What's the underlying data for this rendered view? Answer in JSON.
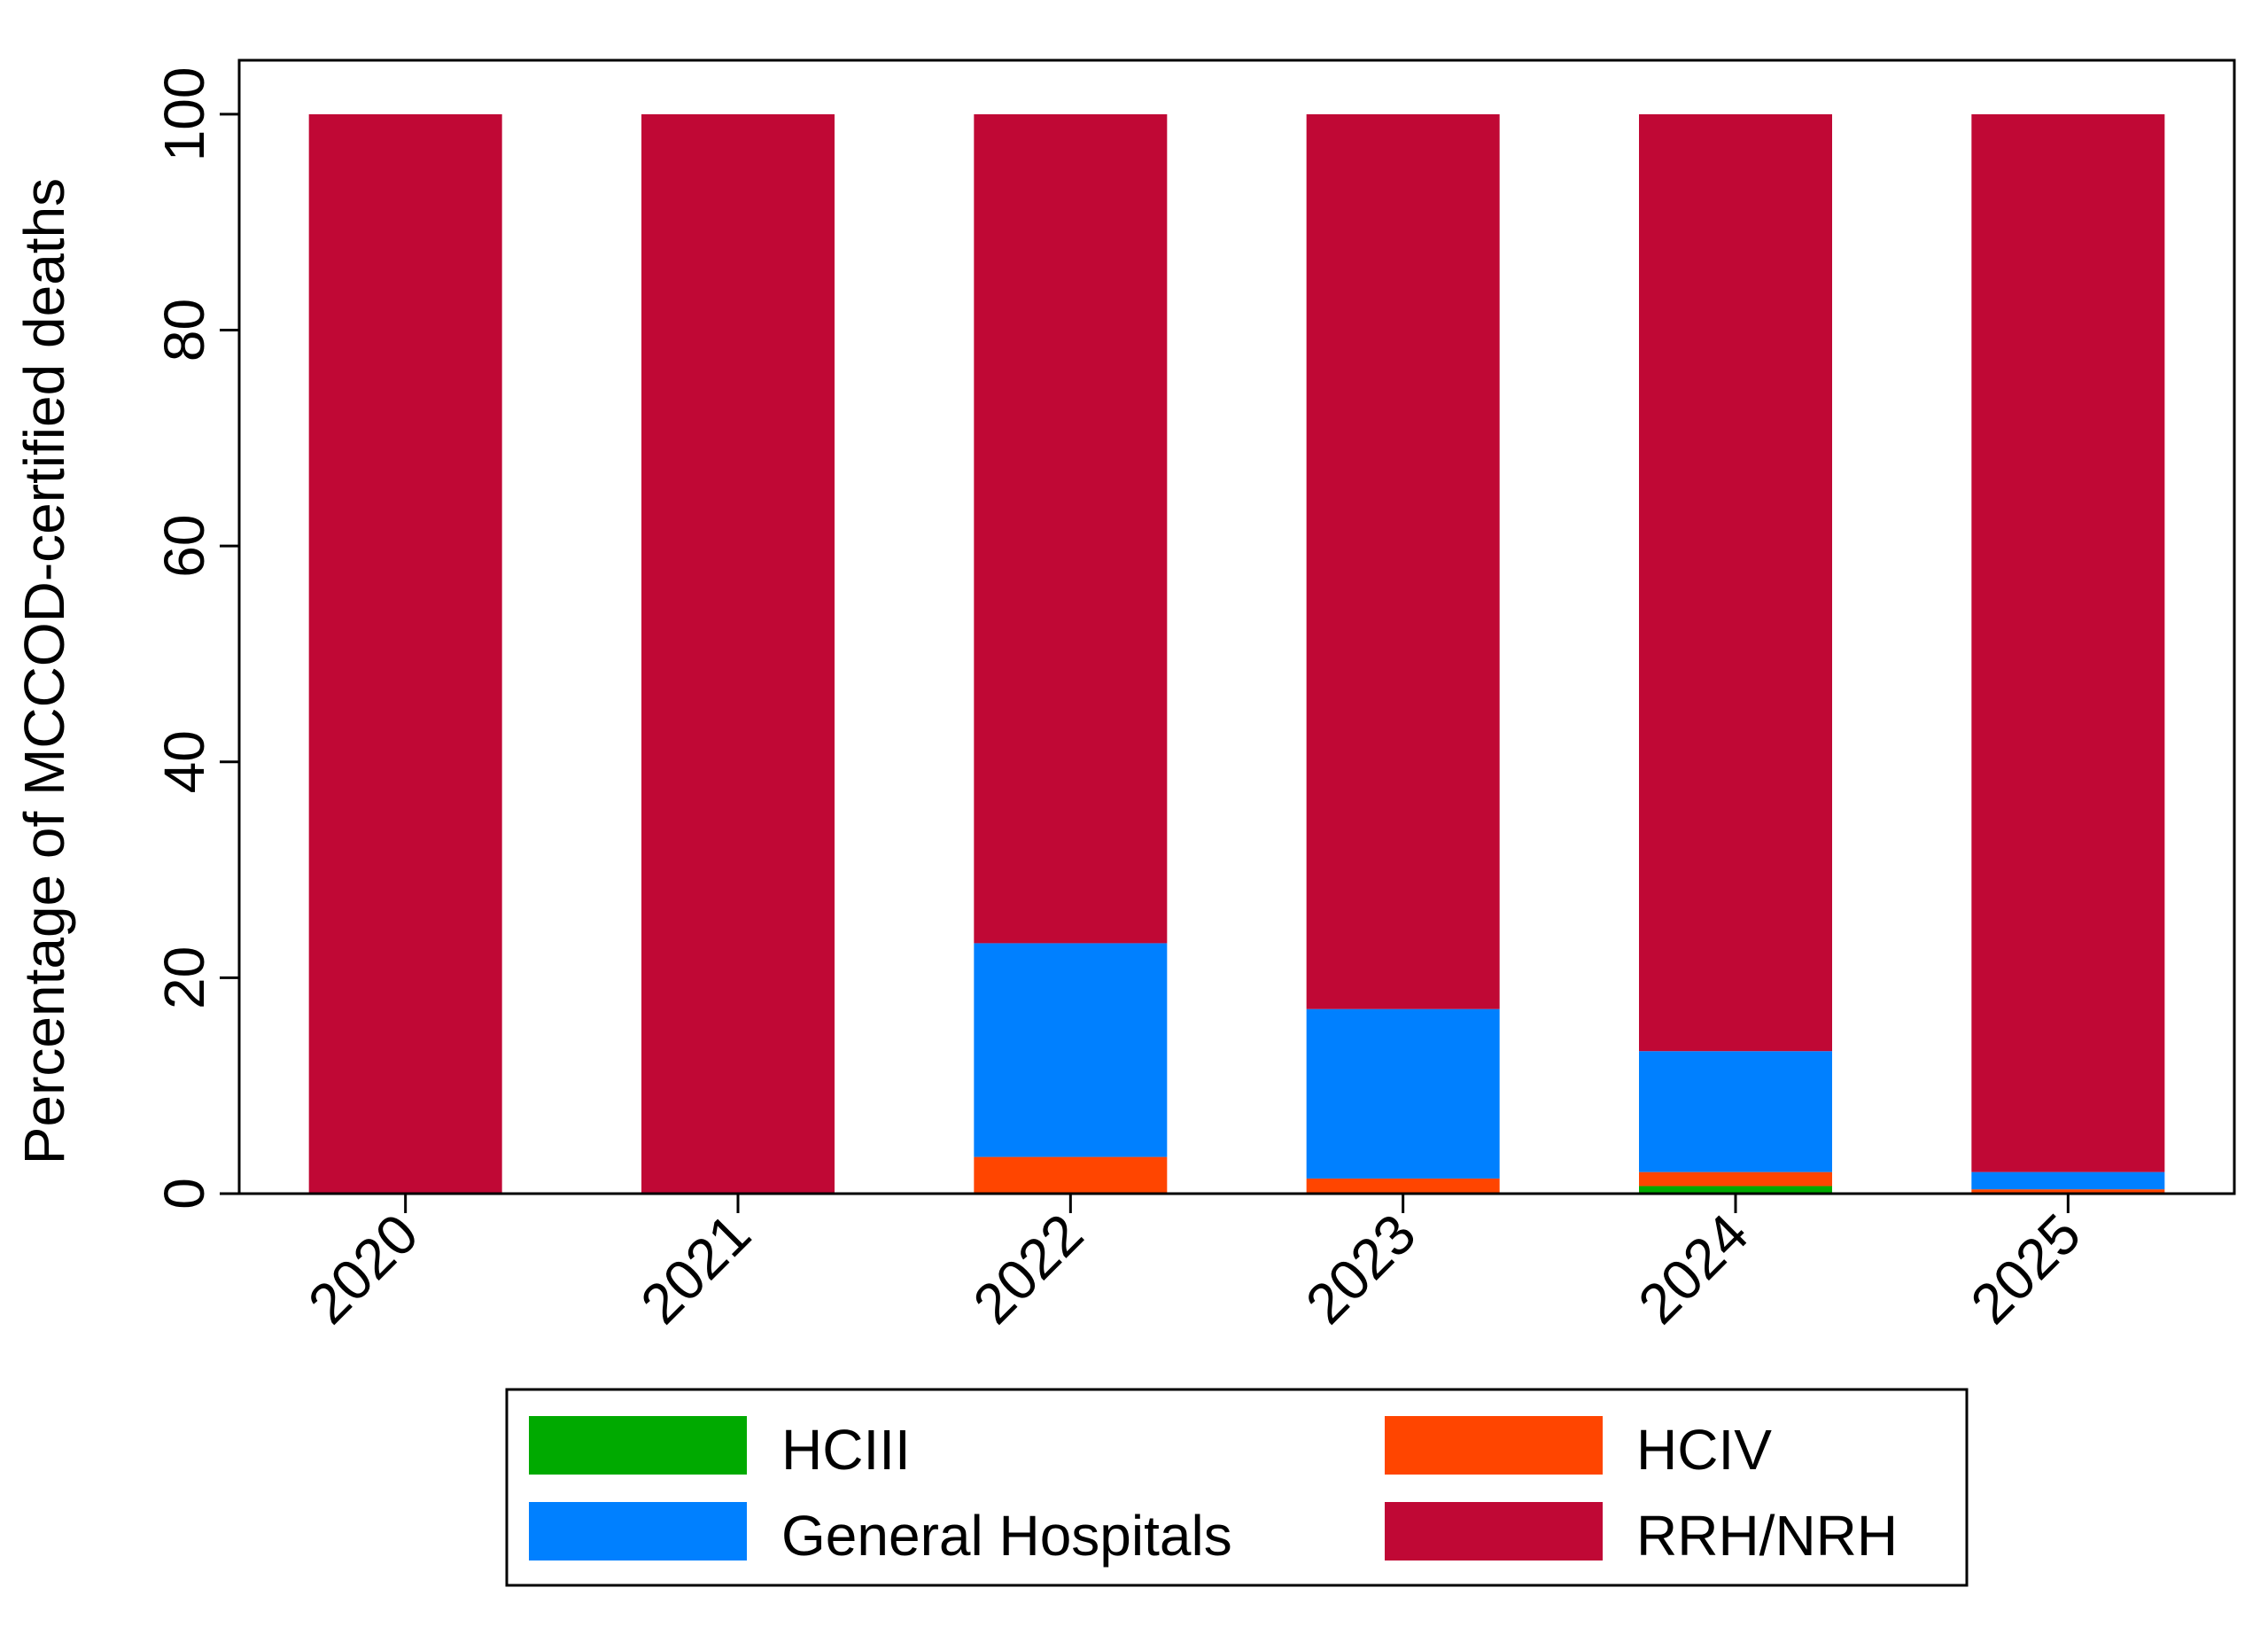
{
  "chart_data": {
    "type": "bar",
    "stacked": true,
    "categories": [
      "2020",
      "2021",
      "2022",
      "2023",
      "2024",
      "2025"
    ],
    "series": [
      {
        "name": "HCIII",
        "color": "#00aa00",
        "values": [
          0,
          0,
          0,
          0,
          0.7,
          0
        ]
      },
      {
        "name": "HCIV",
        "color": "#ff4500",
        "values": [
          0,
          0,
          3.4,
          1.4,
          1.3,
          0.4
        ]
      },
      {
        "name": "General Hospitals",
        "color": "#0080ff",
        "values": [
          0,
          0,
          19.8,
          15.7,
          11.2,
          1.6
        ]
      },
      {
        "name": "RRH/NRH",
        "color": "#c00835",
        "values": [
          100,
          100,
          76.8,
          82.9,
          86.8,
          98.0
        ]
      }
    ],
    "title": "",
    "xlabel": "",
    "ylabel": "Percentage of MCCOD-certified deaths",
    "ylim": [
      0,
      105
    ],
    "yticks": [
      "0",
      "20",
      "40",
      "60",
      "80",
      "100"
    ],
    "grid": false,
    "legend": {
      "position": "bottom",
      "columns": 2,
      "order": [
        "HCIII",
        "HCIV",
        "General Hospitals",
        "RRH/NRH"
      ]
    }
  }
}
